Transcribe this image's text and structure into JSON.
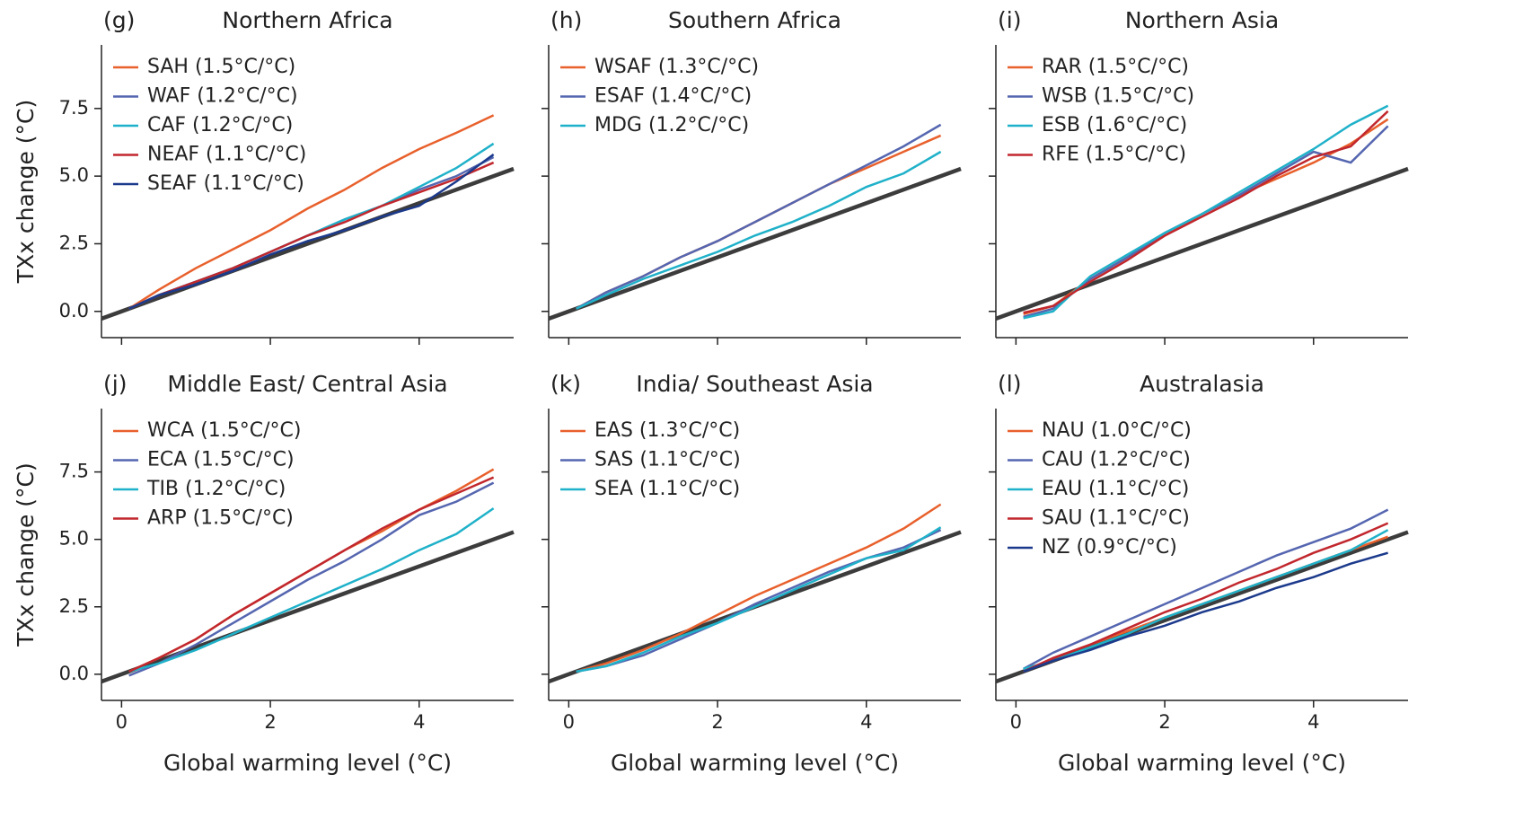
{
  "chart_data": [
    {
      "type": "line",
      "label": "(g)",
      "title": "Northern Africa",
      "ylabel": "TXx change (°C)",
      "x": [
        0.1,
        0.5,
        1,
        1.5,
        2,
        2.5,
        3,
        3.5,
        4,
        4.5,
        5
      ],
      "xlim": [
        -0.27,
        5.27
      ],
      "ylim": [
        -0.97,
        9.85
      ],
      "xticks": [
        0,
        2,
        4
      ],
      "yticks": [
        {
          "value": 0,
          "label": "0.0"
        },
        {
          "value": 2.5,
          "label": "2.5"
        },
        {
          "value": 5,
          "label": "5.0"
        },
        {
          "value": 7.5,
          "label": "7.5"
        }
      ],
      "reference_line": {
        "x": [
          -0.27,
          5.27
        ],
        "values": [
          -0.27,
          5.27
        ],
        "color": "#3c3c3c"
      },
      "series": [
        {
          "name": "SAH (1.5°C/°C)",
          "color": "#e8602c",
          "values": [
            0.1,
            0.8,
            1.6,
            2.3,
            3.0,
            3.8,
            4.5,
            5.3,
            6.0,
            6.6,
            7.25
          ]
        },
        {
          "name": "WAF (1.2°C/°C)",
          "color": "#5566b0",
          "values": [
            0.1,
            0.6,
            1.1,
            1.6,
            2.2,
            2.8,
            3.4,
            3.9,
            4.5,
            5.0,
            5.7
          ]
        },
        {
          "name": "CAF (1.2°C/°C)",
          "color": "#1fb1c9",
          "values": [
            0.1,
            0.6,
            1.1,
            1.6,
            2.2,
            2.8,
            3.4,
            3.9,
            4.6,
            5.3,
            6.2
          ]
        },
        {
          "name": "NEAF (1.1°C/°C)",
          "color": "#c1272d",
          "values": [
            0.1,
            0.6,
            1.1,
            1.6,
            2.2,
            2.8,
            3.3,
            3.9,
            4.4,
            4.9,
            5.5
          ]
        },
        {
          "name": "SEAF (1.1°C/°C)",
          "color": "#1c3a8c",
          "values": [
            0.1,
            0.6,
            1.0,
            1.5,
            2.1,
            2.6,
            3.0,
            3.5,
            3.9,
            4.8,
            5.8
          ]
        }
      ]
    },
    {
      "type": "line",
      "label": "(h)",
      "title": "Southern Africa",
      "x": [
        0.1,
        0.5,
        1,
        1.5,
        2,
        2.5,
        3,
        3.5,
        4,
        4.5,
        5
      ],
      "xlim": [
        -0.27,
        5.27
      ],
      "ylim": [
        -0.97,
        9.85
      ],
      "xticks": [
        0,
        2,
        4
      ],
      "yticks": [
        0,
        2.5,
        5,
        7.5
      ],
      "reference_line": {
        "x": [
          -0.27,
          5.27
        ],
        "values": [
          -0.27,
          5.27
        ],
        "color": "#3c3c3c"
      },
      "series": [
        {
          "name": "WSAF (1.3°C/°C)",
          "color": "#e8602c",
          "values": [
            0.1,
            0.7,
            1.3,
            2.0,
            2.6,
            3.3,
            4.0,
            4.7,
            5.3,
            5.9,
            6.5
          ]
        },
        {
          "name": "ESAF (1.4°C/°C)",
          "color": "#5566b0",
          "values": [
            0.1,
            0.7,
            1.3,
            2.0,
            2.6,
            3.3,
            4.0,
            4.7,
            5.4,
            6.1,
            6.9
          ]
        },
        {
          "name": "MDG (1.2°C/°C)",
          "color": "#1fb1c9",
          "values": [
            0.1,
            0.6,
            1.2,
            1.7,
            2.2,
            2.8,
            3.3,
            3.9,
            4.6,
            5.1,
            5.9
          ]
        }
      ]
    },
    {
      "type": "line",
      "label": "(i)",
      "title": "Northern Asia",
      "x": [
        0.1,
        0.5,
        1,
        1.5,
        2,
        2.5,
        3,
        3.5,
        4,
        4.5,
        5
      ],
      "xlim": [
        -0.27,
        5.27
      ],
      "ylim": [
        -0.97,
        9.85
      ],
      "xticks": [
        0,
        2,
        4
      ],
      "yticks": [
        0,
        2.5,
        5,
        7.5
      ],
      "reference_line": {
        "x": [
          -0.27,
          5.27
        ],
        "values": [
          -0.27,
          5.27
        ],
        "color": "#3c3c3c"
      },
      "series": [
        {
          "name": "RAR (1.5°C/°C)",
          "color": "#e8602c",
          "values": [
            -0.1,
            0.2,
            1.2,
            2.0,
            2.8,
            3.6,
            4.3,
            4.9,
            5.5,
            6.2,
            7.1
          ]
        },
        {
          "name": "WSB (1.5°C/°C)",
          "color": "#5566b0",
          "values": [
            -0.2,
            0.1,
            1.2,
            2.0,
            2.9,
            3.6,
            4.3,
            5.1,
            5.9,
            5.5,
            6.85
          ]
        },
        {
          "name": "ESB (1.6°C/°C)",
          "color": "#1fb1c9",
          "values": [
            -0.25,
            0.0,
            1.3,
            2.1,
            2.9,
            3.6,
            4.4,
            5.2,
            6.0,
            6.9,
            7.6
          ]
        },
        {
          "name": "RFE (1.5°C/°C)",
          "color": "#c1272d",
          "values": [
            -0.05,
            0.2,
            1.1,
            1.9,
            2.8,
            3.5,
            4.2,
            5.0,
            5.7,
            6.1,
            7.4
          ]
        }
      ]
    },
    {
      "type": "line",
      "label": "(j)",
      "title": "Middle East/ Central Asia",
      "ylabel": "TXx change (°C)",
      "xlabel": "Global warming level (°C)",
      "x": [
        0.1,
        0.5,
        1,
        1.5,
        2,
        2.5,
        3,
        3.5,
        4,
        4.5,
        5
      ],
      "xlim": [
        -0.27,
        5.27
      ],
      "ylim": [
        -0.97,
        9.85
      ],
      "xticks": [
        0,
        2,
        4
      ],
      "yticks": [
        {
          "value": 0,
          "label": "0.0"
        },
        {
          "value": 2.5,
          "label": "2.5"
        },
        {
          "value": 5,
          "label": "5.0"
        },
        {
          "value": 7.5,
          "label": "7.5"
        }
      ],
      "reference_line": {
        "x": [
          -0.27,
          5.27
        ],
        "values": [
          -0.27,
          5.27
        ],
        "color": "#3c3c3c"
      },
      "series": [
        {
          "name": "WCA (1.5°C/°C)",
          "color": "#e8602c",
          "values": [
            0.1,
            0.6,
            1.3,
            2.2,
            3.0,
            3.8,
            4.6,
            5.3,
            6.1,
            6.8,
            7.6
          ]
        },
        {
          "name": "ECA (1.5°C/°C)",
          "color": "#5566b0",
          "values": [
            -0.05,
            0.4,
            1.1,
            1.9,
            2.7,
            3.5,
            4.2,
            5.0,
            5.9,
            6.4,
            7.1
          ]
        },
        {
          "name": "TIB (1.2°C/°C)",
          "color": "#1fb1c9",
          "values": [
            0.1,
            0.4,
            0.9,
            1.5,
            2.1,
            2.7,
            3.3,
            3.9,
            4.6,
            5.2,
            6.15
          ]
        },
        {
          "name": "ARP (1.5°C/°C)",
          "color": "#c1272d",
          "values": [
            0.1,
            0.6,
            1.3,
            2.2,
            3.0,
            3.8,
            4.6,
            5.4,
            6.1,
            6.7,
            7.3
          ]
        }
      ]
    },
    {
      "type": "line",
      "label": "(k)",
      "title": "India/ Southeast Asia",
      "xlabel": "Global warming level (°C)",
      "x": [
        0.1,
        0.5,
        1,
        1.5,
        2,
        2.5,
        3,
        3.5,
        4,
        4.5,
        5
      ],
      "xlim": [
        -0.27,
        5.27
      ],
      "ylim": [
        -0.97,
        9.85
      ],
      "xticks": [
        0,
        2,
        4
      ],
      "yticks": [
        0,
        2.5,
        5,
        7.5
      ],
      "reference_line": {
        "x": [
          -0.27,
          5.27
        ],
        "values": [
          -0.27,
          5.27
        ],
        "color": "#3c3c3c"
      },
      "series": [
        {
          "name": "EAS (1.3°C/°C)",
          "color": "#e8602c",
          "values": [
            0.1,
            0.4,
            0.9,
            1.5,
            2.2,
            2.9,
            3.5,
            4.1,
            4.7,
            5.4,
            6.3
          ]
        },
        {
          "name": "SAS (1.1°C/°C)",
          "color": "#5566b0",
          "values": [
            0.1,
            0.3,
            0.7,
            1.3,
            1.9,
            2.6,
            3.2,
            3.8,
            4.3,
            4.7,
            5.35
          ]
        },
        {
          "name": "SEA (1.1°C/°C)",
          "color": "#1fb1c9",
          "values": [
            0.1,
            0.3,
            0.8,
            1.4,
            1.9,
            2.5,
            3.1,
            3.7,
            4.3,
            4.6,
            5.45
          ]
        }
      ]
    },
    {
      "type": "line",
      "label": "(l)",
      "title": "Australasia",
      "xlabel": "Global warming level (°C)",
      "x": [
        0.1,
        0.5,
        1,
        1.5,
        2,
        2.5,
        3,
        3.5,
        4,
        4.5,
        5
      ],
      "xlim": [
        -0.27,
        5.27
      ],
      "ylim": [
        -0.97,
        9.85
      ],
      "xticks": [
        0,
        2,
        4
      ],
      "yticks": [
        0,
        2.5,
        5,
        7.5
      ],
      "reference_line": {
        "x": [
          -0.27,
          5.27
        ],
        "values": [
          -0.27,
          5.27
        ],
        "color": "#3c3c3c"
      },
      "series": [
        {
          "name": "NAU (1.0°C/°C)",
          "color": "#e8602c",
          "values": [
            0.1,
            0.6,
            1.1,
            1.6,
            2.1,
            2.6,
            3.1,
            3.6,
            4.1,
            4.6,
            5.1
          ]
        },
        {
          "name": "CAU (1.2°C/°C)",
          "color": "#5566b0",
          "values": [
            0.2,
            0.8,
            1.4,
            2.0,
            2.6,
            3.2,
            3.8,
            4.4,
            4.9,
            5.4,
            6.1
          ]
        },
        {
          "name": "EAU (1.1°C/°C)",
          "color": "#1fb1c9",
          "values": [
            0.2,
            0.5,
            1.0,
            1.5,
            2.1,
            2.6,
            3.1,
            3.6,
            4.1,
            4.6,
            5.35
          ]
        },
        {
          "name": "SAU (1.1°C/°C)",
          "color": "#c1272d",
          "values": [
            0.1,
            0.6,
            1.1,
            1.7,
            2.3,
            2.8,
            3.4,
            3.9,
            4.5,
            5.0,
            5.6
          ]
        },
        {
          "name": "NZ (0.9°C/°C)",
          "color": "#1c3a8c",
          "values": [
            0.1,
            0.5,
            0.9,
            1.4,
            1.8,
            2.3,
            2.7,
            3.2,
            3.6,
            4.1,
            4.5
          ]
        }
      ]
    }
  ]
}
